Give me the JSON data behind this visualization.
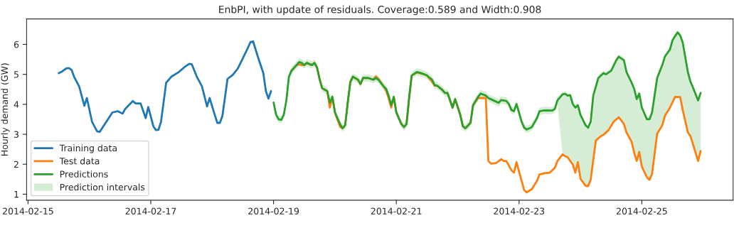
{
  "chart_data": {
    "type": "line",
    "title": "EnbPI, with update of residuals. Coverage:0.589 and Width:0.908",
    "ylabel": "Hourly demand (GW)",
    "xlim": [
      "2014-02-14T23:26",
      "2014-02-26T11:41"
    ],
    "xticks": [
      "2014-02-15",
      "2014-02-17",
      "2014-02-19",
      "2014-02-21",
      "2014-02-23",
      "2014-02-25"
    ],
    "ylim": [
      0.8,
      6.85
    ],
    "yticks": [
      1,
      2,
      3,
      4,
      5,
      6
    ],
    "grid": false,
    "legend": "bottom left",
    "marker": "none",
    "line_style": "solid",
    "series": [
      {
        "name": "Training data",
        "type": "line",
        "color": "#1f77b4",
        "x": [
          "2014-02-15T12:00",
          "2014-02-15T13:00",
          "2014-02-15T15:00",
          "2014-02-15T16:00",
          "2014-02-15T17:00",
          "2014-02-15T18:00",
          "2014-02-15T20:00",
          "2014-02-15T22:00",
          "2014-02-15T23:00",
          "2014-02-16T01:00",
          "2014-02-16T03:00",
          "2014-02-16T04:00",
          "2014-02-16T06:00",
          "2014-02-16T09:00",
          "2014-02-16T11:00",
          "2014-02-16T13:00",
          "2014-02-16T14:00",
          "2014-02-16T17:00",
          "2014-02-16T18:00",
          "2014-02-16T20:00",
          "2014-02-16T22:00",
          "2014-02-16T23:00",
          "2014-02-17T01:00",
          "2014-02-17T02:00",
          "2014-02-17T03:00",
          "2014-02-17T04:00",
          "2014-02-17T06:00",
          "2014-02-17T08:00",
          "2014-02-17T11:00",
          "2014-02-17T13:00",
          "2014-02-17T15:00",
          "2014-02-17T16:00",
          "2014-02-17T18:00",
          "2014-02-17T20:00",
          "2014-02-17T22:00",
          "2014-02-17T23:00",
          "2014-02-18T01:00",
          "2014-02-18T02:00",
          "2014-02-18T03:00",
          "2014-02-18T04:00",
          "2014-02-18T06:00",
          "2014-02-18T08:00",
          "2014-02-18T10:00",
          "2014-02-18T13:00",
          "2014-02-18T15:00",
          "2014-02-18T16:00",
          "2014-02-18T18:00",
          "2014-02-18T20:00",
          "2014-02-18T21:00",
          "2014-02-18T22:00",
          "2014-02-18T23:00"
        ],
        "values": [
          5.04,
          5.08,
          5.2,
          5.21,
          5.15,
          4.92,
          4.59,
          3.95,
          4.21,
          3.42,
          3.1,
          3.08,
          3.34,
          3.73,
          3.77,
          3.69,
          3.85,
          4.11,
          4.03,
          4.03,
          3.54,
          3.91,
          3.27,
          3.14,
          3.15,
          3.42,
          4.72,
          4.92,
          5.08,
          5.23,
          5.35,
          5.34,
          4.92,
          4.6,
          3.93,
          4.21,
          3.65,
          3.38,
          3.38,
          3.61,
          4.85,
          4.98,
          5.19,
          5.71,
          6.08,
          6.1,
          5.55,
          5.04,
          4.44,
          4.19,
          4.44
        ]
      },
      {
        "name": "Test data",
        "type": "line",
        "color": "#ff7f0e",
        "x": [
          "2014-02-19T07:00",
          "2014-02-19T09:00",
          "2014-02-19T10:00",
          "2014-02-19T11:00",
          "2014-02-19T12:00",
          "2014-02-19T13:00",
          "2014-02-19T15:00",
          "2014-02-19T16:00",
          "2014-02-19T17:00",
          "2014-02-19T18:00",
          "2014-02-19T19:00",
          "2014-02-19T21:00",
          "2014-02-19T22:00",
          "2014-02-19T23:00",
          "2014-02-20T00:00",
          "2014-02-20T02:00",
          "2014-02-20T03:00",
          "2014-02-20T04:00",
          "2014-02-20T05:00",
          "2014-02-20T06:00",
          "2014-02-20T07:00",
          "2014-02-20T09:00",
          "2014-02-20T10:00",
          "2014-02-20T11:00",
          "2014-02-20T13:00",
          "2014-02-20T15:00",
          "2014-02-20T16:00",
          "2014-02-20T17:00",
          "2014-02-20T19:00",
          "2014-02-20T20:00",
          "2014-02-20T21:00",
          "2014-02-20T22:00",
          "2014-02-20T23:00",
          "2014-02-21T00:00",
          "2014-02-21T02:00",
          "2014-02-21T03:00",
          "2014-02-21T04:00",
          "2014-02-21T05:00",
          "2014-02-21T06:00",
          "2014-02-21T08:00",
          "2014-02-21T09:00",
          "2014-02-21T11:00",
          "2014-02-21T12:00",
          "2014-02-21T14:00",
          "2014-02-21T15:00",
          "2014-02-21T16:00",
          "2014-02-21T18:00",
          "2014-02-21T19:00",
          "2014-02-21T20:00",
          "2014-02-21T22:00",
          "2014-02-21T23:00",
          "2014-02-22T01:00",
          "2014-02-22T02:00",
          "2014-02-22T03:00",
          "2014-02-22T05:00",
          "2014-02-22T06:00",
          "2014-02-22T08:00",
          "2014-02-22T09:00",
          "2014-02-22T11:00",
          "2014-02-22T12:00",
          "2014-02-22T13:00",
          "2014-02-22T15:00",
          "2014-02-22T17:00",
          "2014-02-22T18:00",
          "2014-02-22T19:00",
          "2014-02-22T21:00",
          "2014-02-22T22:00",
          "2014-02-22T23:00",
          "2014-02-23T01:00",
          "2014-02-23T02:00",
          "2014-02-23T03:00",
          "2014-02-23T05:00",
          "2014-02-23T07:00",
          "2014-02-23T08:00",
          "2014-02-23T10:00",
          "2014-02-23T12:00",
          "2014-02-23T14:00",
          "2014-02-23T15:00",
          "2014-02-23T17:00",
          "2014-02-23T18:00",
          "2014-02-23T19:00",
          "2014-02-23T21:00",
          "2014-02-23T22:00",
          "2014-02-23T23:00",
          "2014-02-24T00:00",
          "2014-02-24T02:00",
          "2014-02-24T03:00",
          "2014-02-24T04:00",
          "2014-02-24T06:00",
          "2014-02-24T08:00",
          "2014-02-24T09:00",
          "2014-02-24T11:00",
          "2014-02-24T13:00",
          "2014-02-24T15:00",
          "2014-02-24T17:00",
          "2014-02-24T18:00",
          "2014-02-24T20:00",
          "2014-02-24T21:00",
          "2014-02-24T22:00",
          "2014-02-24T23:00",
          "2014-02-25T00:00",
          "2014-02-25T02:00",
          "2014-02-25T03:00",
          "2014-02-25T04:00",
          "2014-02-25T06:00",
          "2014-02-25T08:00",
          "2014-02-25T09:00",
          "2014-02-25T11:00",
          "2014-02-25T13:00",
          "2014-02-25T15:00",
          "2014-02-25T16:00",
          "2014-02-25T18:00",
          "2014-02-25T19:00",
          "2014-02-25T20:00",
          "2014-02-25T22:00",
          "2014-02-25T23:00"
        ],
        "values": [
          5.12,
          5.31,
          5.33,
          5.31,
          5.31,
          5.38,
          5.31,
          5.38,
          5.23,
          4.84,
          4.54,
          4.44,
          3.89,
          4.25,
          3.73,
          3.25,
          3.2,
          3.3,
          4.05,
          4.74,
          4.92,
          4.82,
          4.68,
          4.88,
          4.88,
          4.82,
          4.93,
          4.85,
          4.6,
          4.45,
          4.2,
          3.89,
          4.25,
          3.73,
          3.34,
          3.24,
          3.34,
          4.21,
          4.96,
          5.06,
          5.04,
          5.0,
          4.96,
          4.75,
          4.62,
          4.62,
          4.48,
          4.38,
          4.38,
          3.89,
          4.17,
          3.65,
          3.27,
          3.2,
          3.38,
          3.97,
          4.21,
          4.21,
          4.21,
          2.11,
          2.02,
          2.04,
          2.17,
          2.11,
          2.11,
          1.8,
          1.72,
          2.07,
          1.44,
          1.14,
          1.06,
          1.17,
          1.44,
          1.66,
          1.7,
          1.72,
          1.88,
          2.11,
          2.33,
          2.27,
          2.23,
          1.99,
          1.72,
          2.07,
          1.52,
          1.28,
          1.27,
          1.48,
          2.79,
          2.94,
          2.98,
          3.14,
          3.42,
          3.57,
          3.34,
          3.06,
          2.75,
          2.39,
          2.11,
          2.41,
          1.92,
          1.56,
          1.48,
          1.68,
          3.02,
          3.3,
          3.61,
          3.89,
          4.25,
          4.24,
          3.81,
          3.06,
          2.94,
          2.67,
          2.11,
          2.44
        ]
      },
      {
        "name": "Predictions",
        "type": "line",
        "color": "#2ca02c",
        "x": [
          "2014-02-19T00:00",
          "2014-02-19T01:00",
          "2014-02-19T02:00",
          "2014-02-19T03:00",
          "2014-02-19T04:00",
          "2014-02-19T05:00",
          "2014-02-19T06:00",
          "2014-02-19T07:00",
          "2014-02-19T09:00",
          "2014-02-19T10:00",
          "2014-02-19T11:00",
          "2014-02-19T12:00",
          "2014-02-19T13:00",
          "2014-02-19T15:00",
          "2014-02-19T16:00",
          "2014-02-19T17:00",
          "2014-02-19T18:00",
          "2014-02-19T19:00",
          "2014-02-19T21:00",
          "2014-02-19T22:00",
          "2014-02-19T23:00",
          "2014-02-20T00:00",
          "2014-02-20T02:00",
          "2014-02-20T03:00",
          "2014-02-20T04:00",
          "2014-02-20T05:00",
          "2014-02-20T06:00",
          "2014-02-20T07:00",
          "2014-02-20T09:00",
          "2014-02-20T10:00",
          "2014-02-20T11:00",
          "2014-02-20T13:00",
          "2014-02-20T15:00",
          "2014-02-20T16:00",
          "2014-02-20T17:00",
          "2014-02-20T19:00",
          "2014-02-20T20:00",
          "2014-02-20T21:00",
          "2014-02-20T22:00",
          "2014-02-20T23:00",
          "2014-02-21T00:00",
          "2014-02-21T02:00",
          "2014-02-21T03:00",
          "2014-02-21T04:00",
          "2014-02-21T05:00",
          "2014-02-21T06:00",
          "2014-02-21T08:00",
          "2014-02-21T09:00",
          "2014-02-21T11:00",
          "2014-02-21T12:00",
          "2014-02-21T14:00",
          "2014-02-21T15:00",
          "2014-02-21T16:00",
          "2014-02-21T18:00",
          "2014-02-21T19:00",
          "2014-02-21T20:00",
          "2014-02-21T22:00",
          "2014-02-21T23:00",
          "2014-02-22T01:00",
          "2014-02-22T02:00",
          "2014-02-22T03:00",
          "2014-02-22T05:00",
          "2014-02-22T06:00",
          "2014-02-22T08:00",
          "2014-02-22T09:00",
          "2014-02-22T11:00",
          "2014-02-22T12:00",
          "2014-02-22T14:00",
          "2014-02-22T16:00",
          "2014-02-22T17:00",
          "2014-02-22T19:00",
          "2014-02-22T20:00",
          "2014-02-22T21:00",
          "2014-02-22T22:00",
          "2014-02-22T23:00",
          "2014-02-23T01:00",
          "2014-02-23T02:00",
          "2014-02-23T03:00",
          "2014-02-23T05:00",
          "2014-02-23T07:00",
          "2014-02-23T08:00",
          "2014-02-23T10:00",
          "2014-02-23T13:00",
          "2014-02-23T14:00",
          "2014-02-23T15:00",
          "2014-02-23T17:00",
          "2014-02-23T18:00",
          "2014-02-23T19:00",
          "2014-02-23T20:00",
          "2014-02-23T21:00",
          "2014-02-23T22:00",
          "2014-02-23T23:00",
          "2014-02-24T00:00",
          "2014-02-24T02:00",
          "2014-02-24T03:00",
          "2014-02-24T04:00",
          "2014-02-24T05:00",
          "2014-02-24T07:00",
          "2014-02-24T09:00",
          "2014-02-24T10:00",
          "2014-02-24T12:00",
          "2014-02-24T14:00",
          "2014-02-24T15:00",
          "2014-02-24T17:00",
          "2014-02-24T18:00",
          "2014-02-24T20:00",
          "2014-02-24T21:00",
          "2014-02-24T22:00",
          "2014-02-24T23:00",
          "2014-02-25T00:00",
          "2014-02-25T02:00",
          "2014-02-25T03:00",
          "2014-02-25T04:00",
          "2014-02-25T06:00",
          "2014-02-25T08:00",
          "2014-02-25T09:00",
          "2014-02-25T11:00",
          "2014-02-25T12:00",
          "2014-02-25T14:00",
          "2014-02-25T15:00",
          "2014-02-25T16:00",
          "2014-02-25T18:00",
          "2014-02-25T19:00",
          "2014-02-25T20:00",
          "2014-02-25T22:00",
          "2014-02-25T23:00"
        ],
        "values": [
          4.06,
          3.65,
          3.5,
          3.48,
          3.65,
          4.13,
          4.92,
          5.12,
          5.31,
          5.41,
          5.38,
          5.31,
          5.38,
          5.31,
          5.38,
          5.23,
          4.84,
          4.54,
          4.44,
          4.05,
          4.25,
          3.73,
          3.34,
          3.2,
          3.3,
          4.05,
          4.74,
          4.92,
          4.82,
          4.68,
          4.88,
          4.88,
          4.82,
          4.88,
          4.82,
          4.6,
          4.52,
          4.29,
          3.97,
          4.25,
          3.73,
          3.34,
          3.24,
          3.34,
          4.21,
          4.96,
          5.08,
          5.06,
          5.0,
          4.96,
          4.82,
          4.64,
          4.62,
          4.48,
          4.38,
          4.38,
          3.89,
          4.17,
          3.65,
          3.27,
          3.2,
          3.38,
          3.97,
          4.25,
          4.36,
          4.29,
          4.21,
          4.13,
          4.05,
          4.14,
          4.11,
          4.01,
          3.81,
          3.77,
          4.01,
          3.42,
          3.22,
          3.16,
          3.24,
          3.54,
          3.77,
          3.8,
          3.79,
          3.85,
          4.13,
          4.33,
          4.35,
          4.29,
          4.3,
          4.01,
          3.89,
          3.97,
          3.65,
          3.3,
          3.22,
          3.42,
          4.29,
          4.88,
          5.04,
          5.0,
          5.12,
          5.47,
          5.59,
          5.47,
          5.08,
          4.72,
          4.52,
          4.17,
          4.36,
          3.89,
          3.5,
          3.5,
          3.73,
          4.88,
          5.31,
          5.59,
          5.83,
          6.14,
          6.4,
          6.3,
          6.06,
          5.08,
          4.76,
          4.56,
          4.13,
          4.38
        ],
        "lower": [
          3.94,
          3.53,
          3.38,
          3.36,
          3.53,
          4.01,
          4.8,
          5.0,
          5.19,
          5.29,
          5.26,
          5.19,
          5.26,
          5.19,
          5.26,
          5.11,
          4.72,
          4.42,
          4.32,
          3.93,
          4.13,
          3.61,
          3.22,
          3.08,
          3.18,
          3.93,
          4.62,
          4.8,
          4.7,
          4.56,
          4.76,
          4.76,
          4.7,
          4.76,
          4.7,
          4.48,
          4.4,
          4.17,
          3.85,
          4.13,
          3.61,
          3.22,
          3.12,
          3.22,
          4.09,
          4.84,
          4.96,
          4.94,
          4.88,
          4.84,
          4.7,
          4.52,
          4.5,
          4.36,
          4.26,
          4.26,
          3.77,
          4.05,
          3.53,
          3.15,
          3.08,
          3.26,
          3.85,
          4.13,
          4.24,
          4.17,
          4.09,
          4.01,
          3.93,
          4.02,
          3.99,
          3.89,
          3.69,
          3.65,
          3.89,
          3.3,
          3.1,
          3.04,
          3.12,
          3.42,
          3.65,
          3.68,
          3.67,
          3.73,
          4.01,
          2.33,
          2.27,
          2.23,
          2.1,
          1.99,
          1.72,
          2.07,
          1.52,
          1.28,
          1.27,
          1.48,
          2.15,
          2.88,
          2.98,
          3.06,
          3.28,
          3.5,
          3.57,
          3.34,
          3.06,
          2.75,
          2.39,
          2.11,
          2.41,
          1.92,
          1.56,
          1.48,
          1.68,
          3.02,
          3.3,
          3.61,
          3.89,
          4.07,
          4.25,
          4.24,
          3.81,
          3.06,
          2.94,
          2.67,
          2.11,
          2.44
        ],
        "upper": [
          4.18,
          3.77,
          3.62,
          3.6,
          3.77,
          4.25,
          5.04,
          5.24,
          5.43,
          5.53,
          5.5,
          5.43,
          5.5,
          5.43,
          5.5,
          5.35,
          4.96,
          4.66,
          4.56,
          4.17,
          4.37,
          3.85,
          3.46,
          3.32,
          3.42,
          4.17,
          4.86,
          5.04,
          4.94,
          4.8,
          5.0,
          5.0,
          4.94,
          5.0,
          4.94,
          4.72,
          4.64,
          4.41,
          4.09,
          4.37,
          3.85,
          3.46,
          3.36,
          3.46,
          4.33,
          5.08,
          5.2,
          5.18,
          5.12,
          5.08,
          4.94,
          4.76,
          4.74,
          4.6,
          4.5,
          4.5,
          4.01,
          4.29,
          3.77,
          3.39,
          3.32,
          3.5,
          4.09,
          4.37,
          4.48,
          4.41,
          4.33,
          4.25,
          4.17,
          4.26,
          4.23,
          4.13,
          3.93,
          3.89,
          4.13,
          3.54,
          3.34,
          3.28,
          3.36,
          3.66,
          3.89,
          3.92,
          3.91,
          3.97,
          4.25,
          4.41,
          4.43,
          4.37,
          4.38,
          4.09,
          3.97,
          4.05,
          3.73,
          3.38,
          3.3,
          3.5,
          4.37,
          4.96,
          5.12,
          5.08,
          5.2,
          5.55,
          5.67,
          5.55,
          5.16,
          4.8,
          4.6,
          4.25,
          4.44,
          3.97,
          3.58,
          3.58,
          3.81,
          4.96,
          5.39,
          5.67,
          5.91,
          6.22,
          6.48,
          6.38,
          6.14,
          5.16,
          4.84,
          4.64,
          4.21,
          4.46
        ]
      },
      {
        "name": "Prediction intervals",
        "type": "area",
        "color": "#d5ecd5"
      }
    ]
  }
}
